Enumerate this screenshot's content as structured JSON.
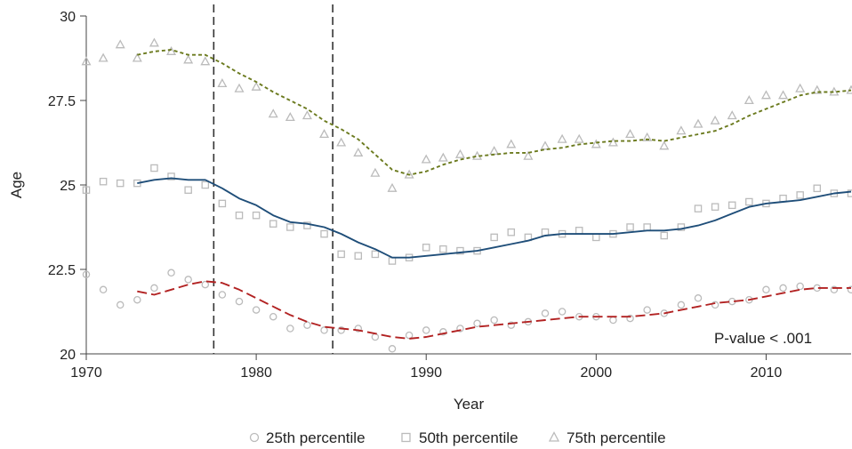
{
  "chart_data": {
    "type": "scatter",
    "xlabel": "Year",
    "ylabel": "Age",
    "xlim": [
      1970,
      2015
    ],
    "ylim": [
      20,
      30
    ],
    "x_ticks": [
      1970,
      1980,
      1990,
      2000,
      2010
    ],
    "x_tick_labels": [
      "1970",
      "1980",
      "1990",
      "2000",
      "2010"
    ],
    "y_ticks": [
      20,
      22.5,
      25,
      27.5,
      30
    ],
    "y_tick_labels": [
      "20",
      "22.5",
      "25",
      "27.5",
      "30"
    ],
    "grid": false,
    "legend_position": "bottom",
    "vertical_lines": [
      1977.5,
      1984.5
    ],
    "annotation": "P-value < .001",
    "series": [
      {
        "name": "25th percentile",
        "marker": "circle",
        "color": "#bbbbbb",
        "x": [
          1970,
          1971,
          1972,
          1973,
          1974,
          1975,
          1976,
          1977,
          1978,
          1979,
          1980,
          1981,
          1982,
          1983,
          1984,
          1985,
          1986,
          1987,
          1988,
          1989,
          1990,
          1991,
          1992,
          1993,
          1994,
          1995,
          1996,
          1997,
          1998,
          1999,
          2000,
          2001,
          2002,
          2003,
          2004,
          2005,
          2006,
          2007,
          2008,
          2009,
          2010,
          2011,
          2012,
          2013,
          2014,
          2015
        ],
        "y": [
          22.35,
          21.9,
          21.45,
          21.6,
          21.95,
          22.4,
          22.2,
          22.05,
          21.75,
          21.55,
          21.3,
          21.1,
          20.75,
          20.85,
          20.7,
          20.7,
          20.75,
          20.5,
          20.15,
          20.55,
          20.7,
          20.65,
          20.75,
          20.9,
          21.0,
          20.85,
          20.95,
          21.2,
          21.25,
          21.1,
          21.1,
          21.0,
          21.05,
          21.3,
          21.2,
          21.45,
          21.65,
          21.45,
          21.55,
          21.6,
          21.9,
          21.95,
          22.0,
          21.95,
          21.9,
          21.9
        ]
      },
      {
        "name": "50th percentile",
        "marker": "square",
        "color": "#bbbbbb",
        "x": [
          1970,
          1971,
          1972,
          1973,
          1974,
          1975,
          1976,
          1977,
          1978,
          1979,
          1980,
          1981,
          1982,
          1983,
          1984,
          1985,
          1986,
          1987,
          1988,
          1989,
          1990,
          1991,
          1992,
          1993,
          1994,
          1995,
          1996,
          1997,
          1998,
          1999,
          2000,
          2001,
          2002,
          2003,
          2004,
          2005,
          2006,
          2007,
          2008,
          2009,
          2010,
          2011,
          2012,
          2013,
          2014,
          2015
        ],
        "y": [
          24.85,
          25.1,
          25.05,
          25.05,
          25.5,
          25.25,
          24.85,
          25.0,
          24.45,
          24.1,
          24.1,
          23.85,
          23.75,
          23.8,
          23.55,
          22.95,
          22.9,
          22.95,
          22.75,
          22.85,
          23.15,
          23.1,
          23.05,
          23.05,
          23.45,
          23.6,
          23.45,
          23.6,
          23.55,
          23.65,
          23.45,
          23.55,
          23.75,
          23.75,
          23.5,
          23.75,
          24.3,
          24.35,
          24.4,
          24.5,
          24.45,
          24.6,
          24.7,
          24.9,
          24.75,
          24.75
        ]
      },
      {
        "name": "75th percentile",
        "marker": "triangle",
        "color": "#bbbbbb",
        "x": [
          1970,
          1971,
          1972,
          1973,
          1974,
          1975,
          1976,
          1977,
          1978,
          1979,
          1980,
          1981,
          1982,
          1983,
          1984,
          1985,
          1986,
          1987,
          1988,
          1989,
          1990,
          1991,
          1992,
          1993,
          1994,
          1995,
          1996,
          1997,
          1998,
          1999,
          2000,
          2001,
          2002,
          2003,
          2004,
          2005,
          2006,
          2007,
          2008,
          2009,
          2010,
          2011,
          2012,
          2013,
          2014,
          2015
        ],
        "y": [
          28.65,
          28.75,
          29.15,
          28.75,
          29.2,
          28.95,
          28.7,
          28.65,
          28.0,
          27.85,
          27.9,
          27.1,
          27.0,
          27.05,
          26.5,
          26.25,
          25.95,
          25.35,
          24.9,
          25.3,
          25.75,
          25.8,
          25.9,
          25.85,
          26.0,
          26.2,
          25.85,
          26.15,
          26.35,
          26.35,
          26.2,
          26.25,
          26.5,
          26.4,
          26.15,
          26.6,
          26.8,
          26.9,
          27.05,
          27.5,
          27.65,
          27.65,
          27.85,
          27.8,
          27.75,
          27.8
        ]
      },
      {
        "line": "smoothed 25th percentile",
        "style": "long-dash",
        "color": "#b22222",
        "x": [
          1973,
          1974,
          1975,
          1976,
          1977,
          1978,
          1979,
          1980,
          1981,
          1982,
          1983,
          1984,
          1985,
          1986,
          1987,
          1988,
          1989,
          1990,
          1991,
          1992,
          1993,
          1994,
          1995,
          1996,
          1997,
          1998,
          1999,
          2000,
          2001,
          2002,
          2003,
          2004,
          2005,
          2006,
          2007,
          2008,
          2009,
          2010,
          2011,
          2012,
          2013,
          2014,
          2015
        ],
        "y": [
          21.85,
          21.75,
          21.9,
          22.05,
          22.15,
          22.1,
          21.9,
          21.65,
          21.4,
          21.15,
          20.95,
          20.8,
          20.75,
          20.7,
          20.6,
          20.5,
          20.45,
          20.5,
          20.6,
          20.7,
          20.8,
          20.85,
          20.9,
          20.95,
          21.0,
          21.05,
          21.1,
          21.1,
          21.1,
          21.1,
          21.15,
          21.2,
          21.3,
          21.4,
          21.5,
          21.55,
          21.6,
          21.7,
          21.8,
          21.9,
          21.95,
          21.95,
          21.95
        ]
      },
      {
        "line": "smoothed 50th percentile",
        "style": "solid",
        "color": "#1f4e79",
        "x": [
          1973,
          1974,
          1975,
          1976,
          1977,
          1978,
          1979,
          1980,
          1981,
          1982,
          1983,
          1984,
          1985,
          1986,
          1987,
          1988,
          1989,
          1990,
          1991,
          1992,
          1993,
          1994,
          1995,
          1996,
          1997,
          1998,
          1999,
          2000,
          2001,
          2002,
          2003,
          2004,
          2005,
          2006,
          2007,
          2008,
          2009,
          2010,
          2011,
          2012,
          2013,
          2014,
          2015
        ],
        "y": [
          25.05,
          25.15,
          25.2,
          25.15,
          25.15,
          24.9,
          24.6,
          24.4,
          24.1,
          23.9,
          23.85,
          23.75,
          23.55,
          23.3,
          23.1,
          22.85,
          22.85,
          22.9,
          22.95,
          23.0,
          23.05,
          23.15,
          23.25,
          23.35,
          23.5,
          23.55,
          23.55,
          23.55,
          23.55,
          23.6,
          23.65,
          23.65,
          23.7,
          23.8,
          23.95,
          24.15,
          24.35,
          24.45,
          24.5,
          24.55,
          24.65,
          24.75,
          24.8
        ]
      },
      {
        "line": "smoothed 75th percentile",
        "style": "short-dash",
        "color": "#6b7a1e",
        "x": [
          1973,
          1974,
          1975,
          1976,
          1977,
          1978,
          1979,
          1980,
          1981,
          1982,
          1983,
          1984,
          1985,
          1986,
          1987,
          1988,
          1989,
          1990,
          1991,
          1992,
          1993,
          1994,
          1995,
          1996,
          1997,
          1998,
          1999,
          2000,
          2001,
          2002,
          2003,
          2004,
          2005,
          2006,
          2007,
          2008,
          2009,
          2010,
          2011,
          2012,
          2013,
          2014,
          2015
        ],
        "y": [
          28.85,
          28.95,
          29.0,
          28.85,
          28.85,
          28.6,
          28.3,
          28.05,
          27.75,
          27.5,
          27.25,
          26.9,
          26.65,
          26.35,
          25.9,
          25.45,
          25.3,
          25.4,
          25.6,
          25.75,
          25.85,
          25.9,
          25.95,
          25.95,
          26.05,
          26.1,
          26.2,
          26.25,
          26.3,
          26.3,
          26.35,
          26.3,
          26.4,
          26.5,
          26.6,
          26.8,
          27.05,
          27.25,
          27.45,
          27.65,
          27.75,
          27.75,
          27.8
        ]
      }
    ]
  }
}
